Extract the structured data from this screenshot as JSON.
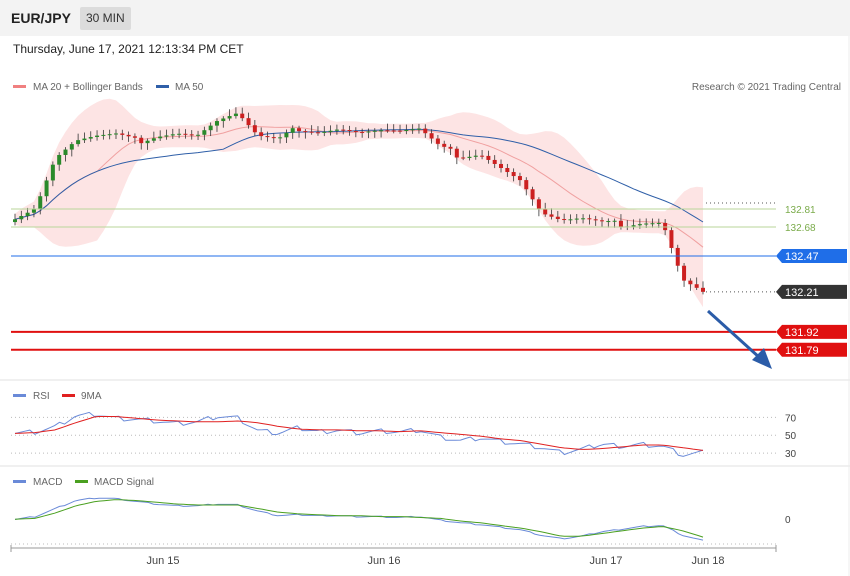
{
  "header": {
    "symbol": "EUR/JPY",
    "timeframe": "30 MIN"
  },
  "timestamp": "Thursday, June 17, 2021 12:13:34 PM CET",
  "copyright": "Research © 2021 Trading Central",
  "legend": {
    "main": [
      {
        "label": "MA 20 + Bollinger Bands",
        "color": "#f08080"
      },
      {
        "label": "MA 50",
        "color": "#2f5fa8"
      }
    ],
    "rsi": [
      {
        "label": "RSI",
        "color": "#6a8ad8"
      },
      {
        "label": "9MA",
        "color": "#e02020"
      }
    ],
    "macd": [
      {
        "label": "MACD",
        "color": "#6a8ad8"
      },
      {
        "label": "MACD Signal",
        "color": "#4aa020"
      }
    ]
  },
  "colors": {
    "up": "#2a8a2a",
    "down": "#cc2020",
    "band": "#fde4e4",
    "ma50": "#2f5fa8",
    "ma20": "#f0a0a0"
  },
  "chart_data": [
    {
      "type": "candlestick",
      "ylim": [
        131.6,
        133.6
      ],
      "x_labels": [
        "Jun 15",
        "Jun 16",
        "Jun 17",
        "Jun 18"
      ],
      "close_path": [
        132.75,
        132.82,
        133.18,
        133.3,
        133.33,
        133.34,
        133.3,
        133.35,
        133.37,
        133.35,
        133.45,
        133.5,
        133.33,
        133.3,
        133.4,
        133.38,
        133.4,
        133.37,
        133.38,
        133.37,
        133.38,
        133.25,
        133.2,
        133.22,
        133.12,
        133.02,
        132.78,
        132.72,
        132.73,
        132.7,
        132.7,
        132.72,
        132.72,
        132.3,
        132.21
      ],
      "levels": [
        {
          "value": 132.81,
          "label": "132.81",
          "type": "resistance",
          "color": "#7aab4a"
        },
        {
          "value": 132.68,
          "label": "132.68",
          "type": "resistance",
          "color": "#7aab4a"
        },
        {
          "value": 132.47,
          "label": "132.47",
          "type": "pivot",
          "color": "#1f6ee8"
        },
        {
          "value": 132.21,
          "label": "132.21",
          "type": "last-price",
          "color": "#333333"
        },
        {
          "value": 131.92,
          "label": "131.92",
          "type": "support",
          "color": "#e01010"
        },
        {
          "value": 131.79,
          "label": "131.79",
          "type": "support",
          "color": "#e01010"
        }
      ]
    },
    {
      "type": "line",
      "name": "RSI",
      "ylim": [
        20,
        85
      ],
      "ticks": [
        "70",
        "50",
        "30"
      ],
      "tick_values": [
        70,
        50,
        30
      ],
      "rsi": [
        53,
        54,
        60,
        72,
        74,
        69,
        68,
        66,
        63,
        65,
        71,
        69,
        55,
        52,
        58,
        54,
        56,
        53,
        55,
        54,
        56,
        48,
        44,
        47,
        43,
        40,
        36,
        30,
        34,
        40,
        38,
        40,
        38,
        28,
        31
      ],
      "ma9": [
        52,
        53,
        56,
        64,
        71,
        71,
        69,
        67,
        66,
        65,
        65,
        66,
        64,
        60,
        57,
        56,
        56,
        55,
        55,
        54,
        55,
        53,
        51,
        49,
        46,
        44,
        40,
        36,
        34,
        35,
        37,
        39,
        39,
        36,
        33
      ]
    },
    {
      "type": "line",
      "name": "MACD",
      "ylim": [
        -0.3,
        0.35
      ],
      "ticks": [
        "0"
      ],
      "tick_values": [
        0
      ],
      "macd": [
        0.0,
        0.03,
        0.12,
        0.21,
        0.24,
        0.23,
        0.2,
        0.17,
        0.15,
        0.15,
        0.17,
        0.16,
        0.09,
        0.04,
        0.05,
        0.04,
        0.04,
        0.03,
        0.03,
        0.02,
        0.03,
        -0.01,
        -0.04,
        -0.06,
        -0.09,
        -0.12,
        -0.18,
        -0.22,
        -0.19,
        -0.14,
        -0.11,
        -0.08,
        -0.07,
        -0.18,
        -0.24
      ],
      "signal": [
        0.0,
        0.01,
        0.07,
        0.15,
        0.2,
        0.22,
        0.21,
        0.19,
        0.17,
        0.16,
        0.16,
        0.16,
        0.12,
        0.08,
        0.06,
        0.05,
        0.04,
        0.04,
        0.03,
        0.03,
        0.02,
        0.01,
        -0.02,
        -0.04,
        -0.07,
        -0.1,
        -0.14,
        -0.19,
        -0.19,
        -0.16,
        -0.13,
        -0.1,
        -0.08,
        -0.13,
        -0.2
      ]
    }
  ]
}
